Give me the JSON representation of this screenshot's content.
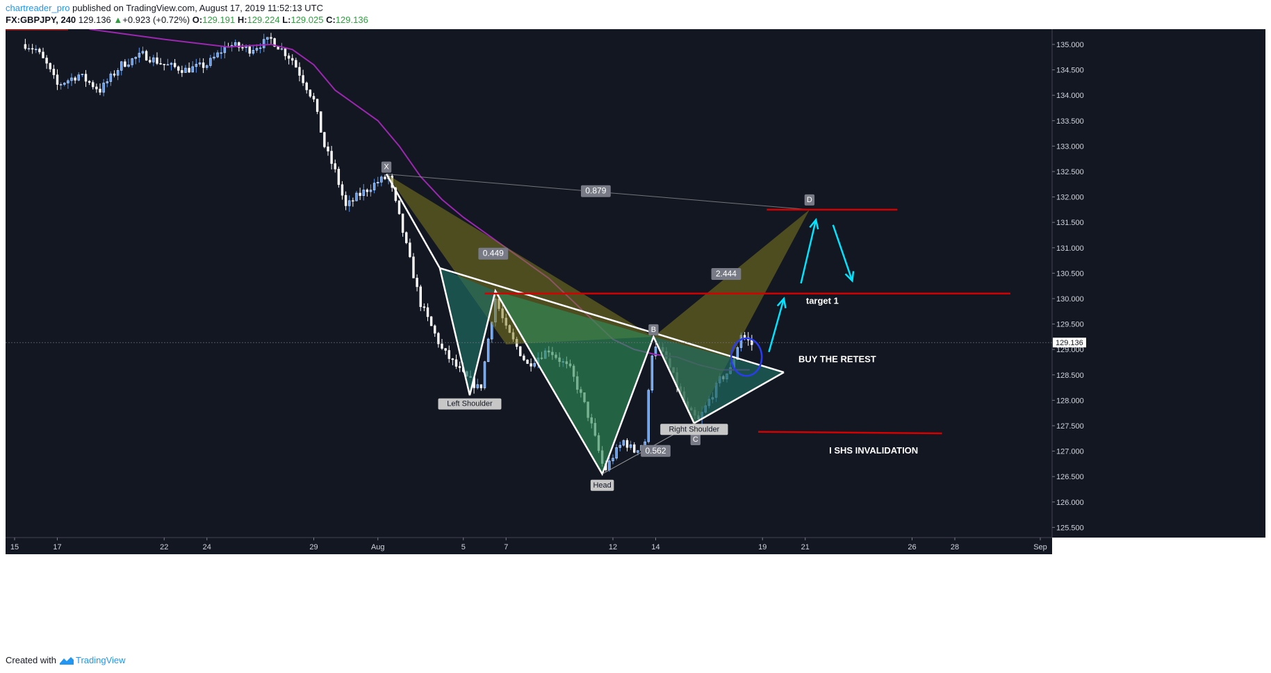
{
  "header": {
    "author": "chartreader_pro",
    "published": "published on TradingView.com, August 17, 2019 11:52:13 UTC",
    "symbol": "FX:GBPJPY, 240",
    "last": "129.136",
    "change": "+0.923 (+0.72%)",
    "o_label": "O:",
    "o": "129.191",
    "h_label": "H:",
    "h": "129.224",
    "l_label": "L:",
    "l": "129.025",
    "c_label": "C:",
    "c": "129.136"
  },
  "footer": {
    "created": "Created with",
    "brand": "TradingView"
  },
  "colors": {
    "background": "#131722",
    "up": "#5b9cf6",
    "down": "#ffffff",
    "ma": "#9c27b0",
    "level": "#d50000",
    "arrow": "#00e5ff",
    "harmonic": "#807a1f",
    "shs": "#1f6b5f"
  },
  "chart_data": {
    "type": "candlestick",
    "instrument": "FX:GBPJPY",
    "timeframe": "240",
    "y_ticks": [
      125.5,
      126.0,
      126.5,
      127.0,
      127.5,
      128.0,
      128.5,
      129.0,
      129.5,
      130.0,
      130.5,
      131.0,
      131.5,
      132.0,
      132.5,
      133.0,
      133.5,
      134.0,
      134.5,
      135.0
    ],
    "y_tick_labels": [
      "125.500",
      "126.000",
      "126.500",
      "127.000",
      "127.500",
      "128.000",
      "128.500",
      "129.000",
      "129.500",
      "130.000",
      "130.500",
      "131.000",
      "131.500",
      "132.000",
      "132.500",
      "133.000",
      "133.500",
      "134.000",
      "134.500",
      "135.000"
    ],
    "ylim": [
      125.3,
      135.3
    ],
    "x_ticks": [
      {
        "label": "15",
        "d": 15
      },
      {
        "label": "17",
        "d": 17
      },
      {
        "label": "22",
        "d": 22
      },
      {
        "label": "24",
        "d": 24
      },
      {
        "label": "29",
        "d": 29
      },
      {
        "label": "Aug",
        "d": 32
      },
      {
        "label": "5",
        "d": 36
      },
      {
        "label": "7",
        "d": 38
      },
      {
        "label": "12",
        "d": 43
      },
      {
        "label": "14",
        "d": 45
      },
      {
        "label": "19",
        "d": 50
      },
      {
        "label": "21",
        "d": 52
      },
      {
        "label": "26",
        "d": 57
      },
      {
        "label": "28",
        "d": 59
      },
      {
        "label": "Sep",
        "d": 63
      }
    ],
    "last_price": 129.136,
    "last_price_label": "129.136",
    "price_anchors": [
      {
        "d": 15.5,
        "p": 135.0
      },
      {
        "d": 16.0,
        "p": 134.9
      },
      {
        "d": 16.5,
        "p": 134.6
      },
      {
        "d": 17.0,
        "p": 134.2
      },
      {
        "d": 18.0,
        "p": 134.4
      },
      {
        "d": 19.0,
        "p": 134.1
      },
      {
        "d": 20.0,
        "p": 134.6
      },
      {
        "d": 21.0,
        "p": 134.8
      },
      {
        "d": 22.0,
        "p": 134.6
      },
      {
        "d": 23.0,
        "p": 134.5
      },
      {
        "d": 24.0,
        "p": 134.6
      },
      {
        "d": 25.0,
        "p": 135.0
      },
      {
        "d": 26.0,
        "p": 134.9
      },
      {
        "d": 27.0,
        "p": 135.1
      },
      {
        "d": 28.0,
        "p": 134.7
      },
      {
        "d": 29.0,
        "p": 133.9
      },
      {
        "d": 29.5,
        "p": 133.0
      },
      {
        "d": 30.0,
        "p": 132.5
      },
      {
        "d": 30.5,
        "p": 131.8
      },
      {
        "d": 31.0,
        "p": 132.0
      },
      {
        "d": 32.0,
        "p": 132.3
      },
      {
        "d": 32.5,
        "p": 132.4
      },
      {
        "d": 33.0,
        "p": 131.6
      },
      {
        "d": 34.0,
        "p": 129.9
      },
      {
        "d": 35.0,
        "p": 129.0
      },
      {
        "d": 36.0,
        "p": 128.5
      },
      {
        "d": 36.8,
        "p": 128.2
      },
      {
        "d": 37.2,
        "p": 129.3
      },
      {
        "d": 37.5,
        "p": 130.0
      },
      {
        "d": 38.0,
        "p": 129.4
      },
      {
        "d": 39.0,
        "p": 128.7
      },
      {
        "d": 40.0,
        "p": 129.0
      },
      {
        "d": 41.0,
        "p": 128.6
      },
      {
        "d": 41.6,
        "p": 128.0
      },
      {
        "d": 42.0,
        "p": 127.5
      },
      {
        "d": 42.6,
        "p": 126.6
      },
      {
        "d": 43.0,
        "p": 126.9
      },
      {
        "d": 43.5,
        "p": 127.2
      },
      {
        "d": 44.0,
        "p": 127.0
      },
      {
        "d": 44.5,
        "p": 127.2
      },
      {
        "d": 44.8,
        "p": 128.9
      },
      {
        "d": 45.0,
        "p": 129.1
      },
      {
        "d": 45.5,
        "p": 128.8
      },
      {
        "d": 46.0,
        "p": 128.3
      },
      {
        "d": 46.5,
        "p": 127.8
      },
      {
        "d": 47.0,
        "p": 127.6
      },
      {
        "d": 47.5,
        "p": 128.0
      },
      {
        "d": 48.0,
        "p": 128.4
      },
      {
        "d": 48.5,
        "p": 128.6
      },
      {
        "d": 49.0,
        "p": 129.3
      },
      {
        "d": 49.5,
        "p": 129.1
      }
    ],
    "ma_points": [
      {
        "d": 18.5,
        "p": 135.3
      },
      {
        "d": 22.0,
        "p": 135.1
      },
      {
        "d": 25.0,
        "p": 134.95
      },
      {
        "d": 27.0,
        "p": 135.0
      },
      {
        "d": 28.0,
        "p": 134.9
      },
      {
        "d": 29.0,
        "p": 134.6
      },
      {
        "d": 30.0,
        "p": 134.1
      },
      {
        "d": 31.0,
        "p": 133.8
      },
      {
        "d": 32.0,
        "p": 133.5
      },
      {
        "d": 33.0,
        "p": 133.0
      },
      {
        "d": 34.0,
        "p": 132.4
      },
      {
        "d": 35.0,
        "p": 131.95
      },
      {
        "d": 36.0,
        "p": 131.6
      },
      {
        "d": 37.0,
        "p": 131.3
      },
      {
        "d": 38.0,
        "p": 131.0
      },
      {
        "d": 39.0,
        "p": 130.7
      },
      {
        "d": 40.0,
        "p": 130.4
      },
      {
        "d": 41.0,
        "p": 130.0
      },
      {
        "d": 42.0,
        "p": 129.6
      },
      {
        "d": 43.0,
        "p": 129.2
      },
      {
        "d": 44.0,
        "p": 129.0
      },
      {
        "d": 45.0,
        "p": 128.9
      },
      {
        "d": 46.0,
        "p": 128.85
      },
      {
        "d": 47.0,
        "p": 128.7
      },
      {
        "d": 48.0,
        "p": 128.6
      },
      {
        "d": 49.0,
        "p": 128.6
      },
      {
        "d": 49.4,
        "p": 128.6
      }
    ],
    "harmonic": {
      "X": {
        "d": 32.4,
        "p": 132.45
      },
      "A": {
        "d": 38.0,
        "p": 129.1
      },
      "B": {
        "d": 44.9,
        "p": 129.25
      },
      "C": {
        "d": 46.8,
        "p": 127.5
      },
      "D": {
        "d": 52.2,
        "p": 131.75
      },
      "labels": {
        "X": "X",
        "B": "B",
        "C": "C",
        "D": "D"
      },
      "ratios": [
        {
          "text": "0.879",
          "d": 42.2,
          "p": 132.08
        },
        {
          "text": "0.449",
          "d": 37.4,
          "p": 130.85
        },
        {
          "text": "2.444",
          "d": 48.3,
          "p": 130.45
        },
        {
          "text": "0.562",
          "d": 45.0,
          "p": 126.97
        }
      ]
    },
    "shs": {
      "p0": {
        "d": 34.9,
        "p": 130.6
      },
      "ls": {
        "d": 36.3,
        "p": 128.1
      },
      "n1": {
        "d": 37.5,
        "p": 130.15
      },
      "head": {
        "d": 42.5,
        "p": 126.55
      },
      "n2": {
        "d": 44.9,
        "p": 129.25
      },
      "rs": {
        "d": 46.8,
        "p": 127.55
      },
      "apex": {
        "d": 51.0,
        "p": 128.55
      },
      "labels": [
        {
          "text": "Left Shoulder",
          "d": 36.3,
          "p": 127.9
        },
        {
          "text": "Head",
          "d": 42.5,
          "p": 126.3
        },
        {
          "text": "Right Shoulder",
          "d": 46.8,
          "p": 127.4
        }
      ]
    },
    "levels": [
      {
        "name": "target-1-level",
        "d1": 37.0,
        "p1": 130.1,
        "d2": 61.6,
        "p2": 130.1
      },
      {
        "name": "d-level",
        "d1": 50.2,
        "p1": 131.75,
        "d2": 56.3,
        "p2": 131.75
      },
      {
        "name": "invalidation-level",
        "d1": 49.8,
        "p1": 127.38,
        "d2": 58.4,
        "p2": 127.35
      }
    ],
    "arrows": [
      {
        "d1": 50.3,
        "p1": 128.95,
        "d2": 51.0,
        "p2": 130.0
      },
      {
        "d1": 51.8,
        "p1": 130.3,
        "d2": 52.5,
        "p2": 131.55
      },
      {
        "d1": 53.3,
        "p1": 131.45,
        "d2": 54.2,
        "p2": 130.35
      }
    ],
    "retest_circle": {
      "d": 49.25,
      "p": 128.85
    },
    "annotations": [
      {
        "text": "target 1",
        "d": 52.8,
        "p": 129.9
      },
      {
        "text": "BUY THE RETEST",
        "d": 53.5,
        "p": 128.75
      },
      {
        "text": "I SHS INVALIDATION",
        "d": 55.2,
        "p": 126.95
      }
    ]
  }
}
